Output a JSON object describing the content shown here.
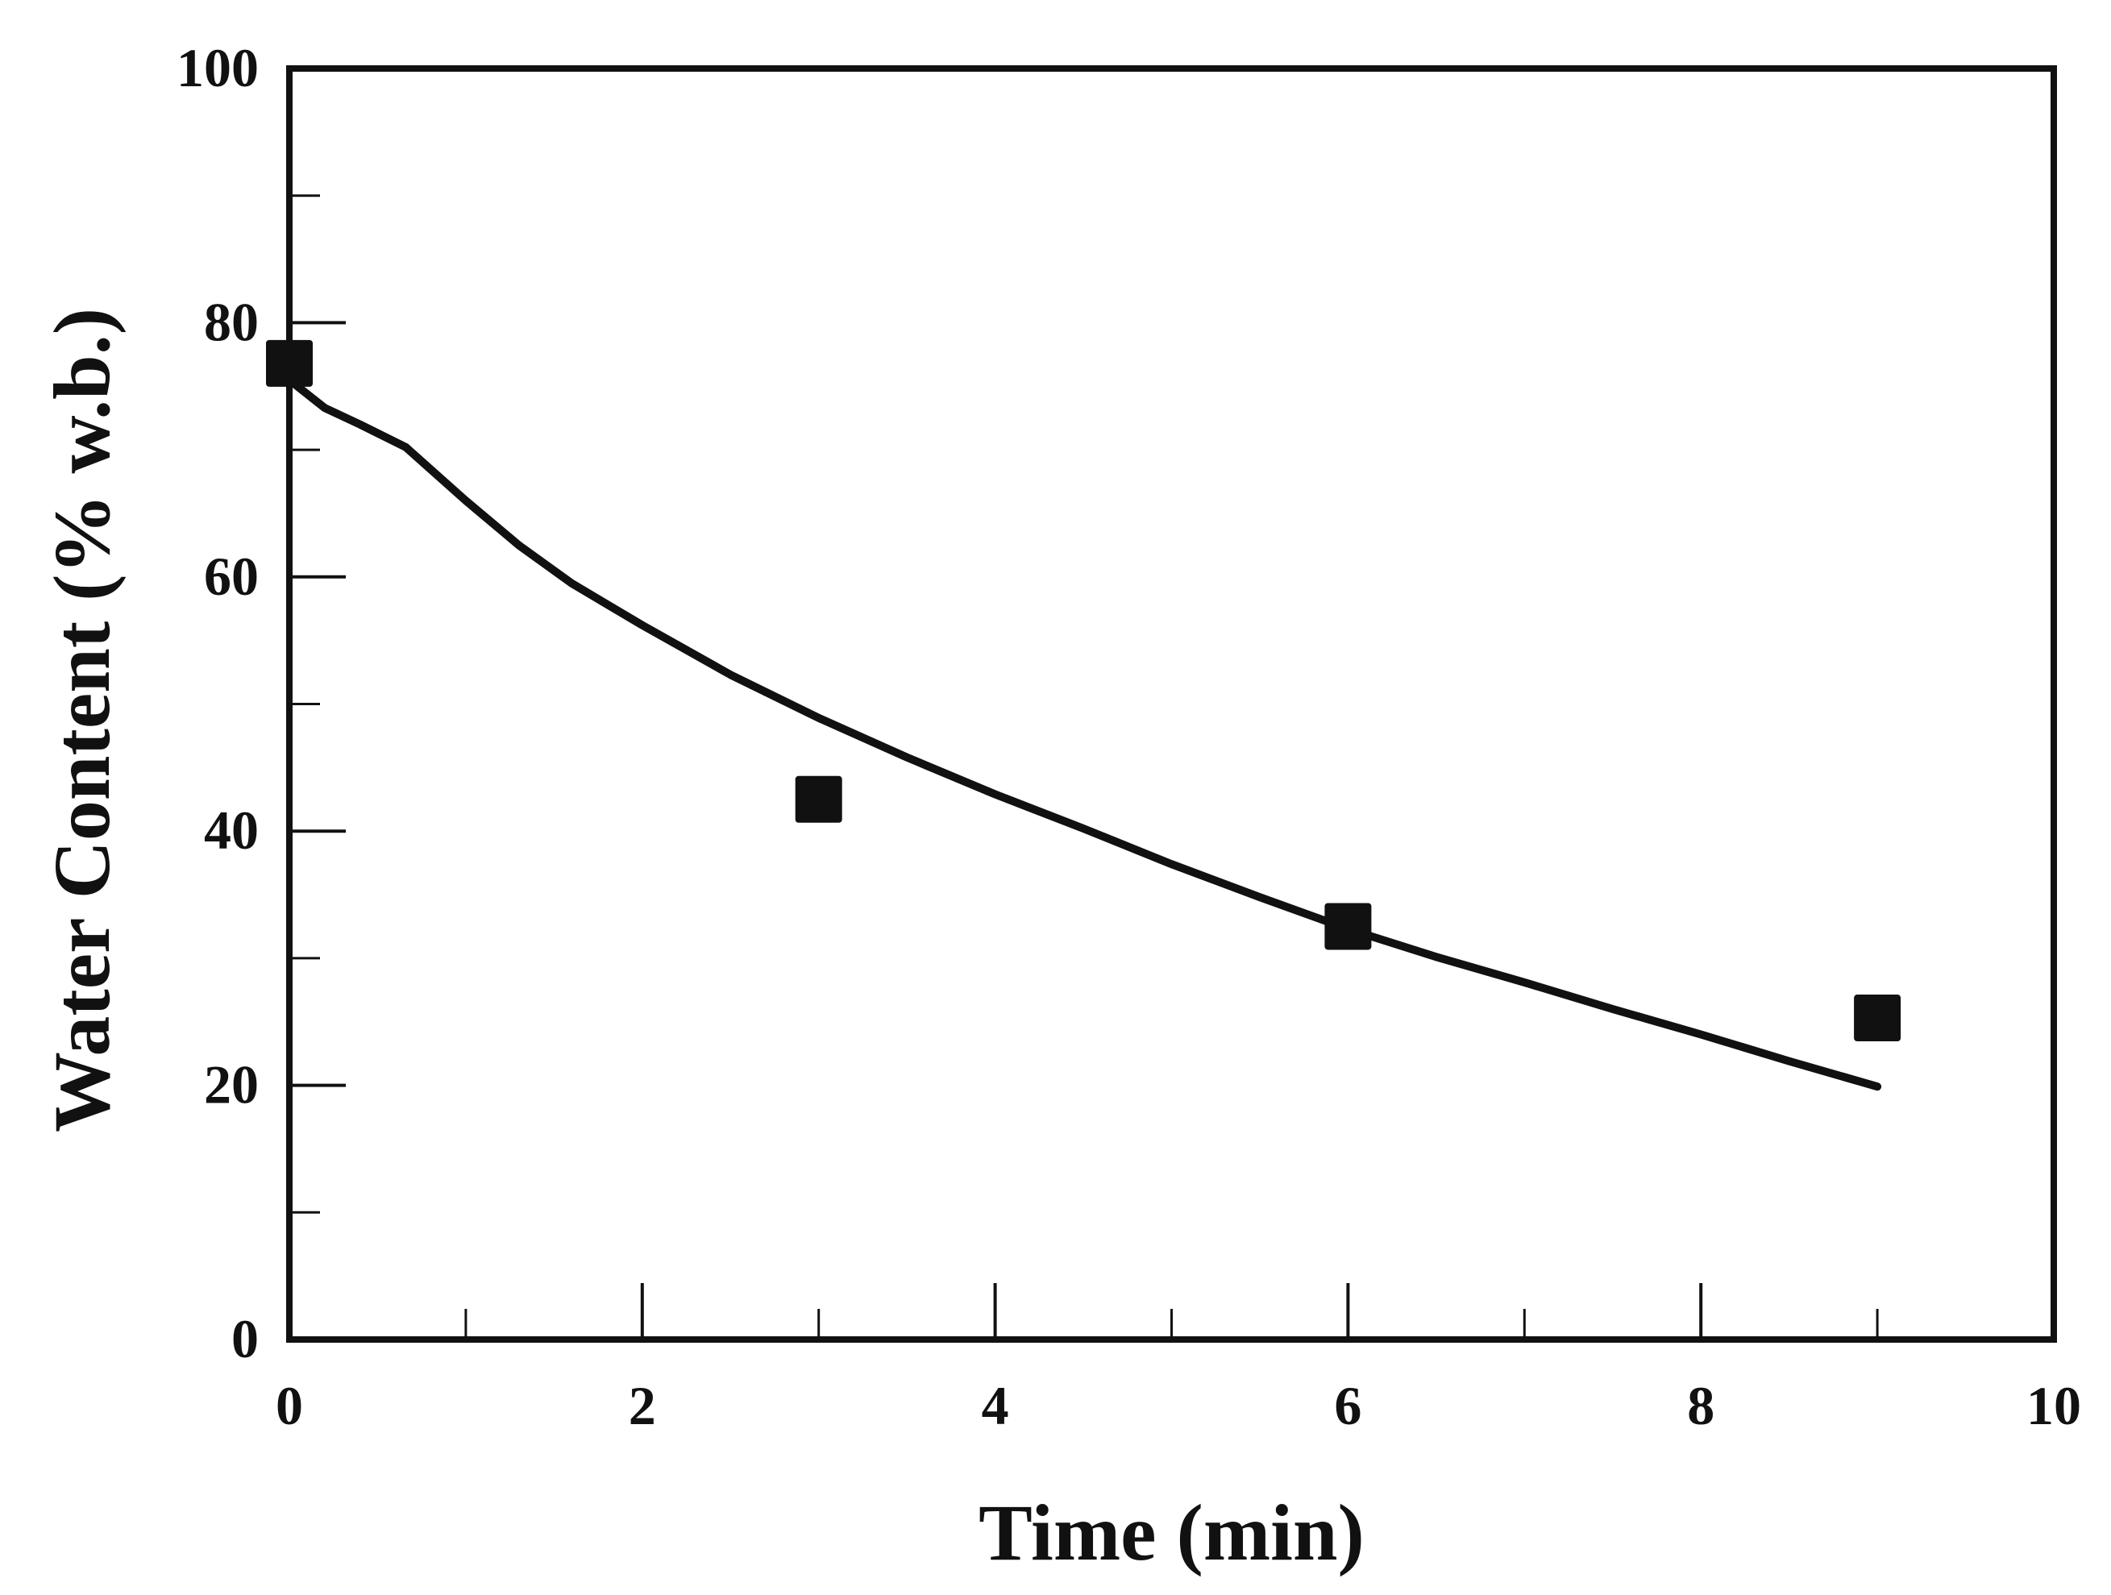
{
  "chart_data": {
    "type": "scatter",
    "title": "",
    "xlabel": "Time (min)",
    "ylabel": "Water Content (% w.b.)",
    "xlim": [
      0,
      10
    ],
    "ylim": [
      0,
      100
    ],
    "x_ticks": [
      0,
      2,
      4,
      6,
      8,
      10
    ],
    "x_tick_labels": [
      "0",
      "2",
      "4",
      "6",
      "8",
      "10"
    ],
    "x_minor_ticks": [
      1,
      3,
      5,
      7,
      9
    ],
    "y_ticks": [
      0,
      20,
      40,
      60,
      80,
      100
    ],
    "y_tick_labels": [
      "0",
      "20",
      "40",
      "60",
      "80",
      "100"
    ],
    "y_minor_ticks": [
      10,
      30,
      50,
      70,
      90
    ],
    "grid": false,
    "legend": "none",
    "series": [
      {
        "kind": "scatter",
        "marker": "square",
        "color": "#111111",
        "x": [
          0,
          3,
          6,
          9
        ],
        "y": [
          76.8,
          42.5,
          32.5,
          25.3
        ]
      },
      {
        "kind": "line",
        "color": "#111111",
        "x": [
          0,
          0.2,
          0.4,
          0.66,
          1.0,
          1.3,
          1.6,
          2.0,
          2.5,
          3.0,
          3.5,
          4.0,
          4.5,
          5.0,
          5.5,
          6.0,
          6.5,
          7.0,
          7.5,
          8.0,
          8.5,
          9.0
        ],
        "y": [
          75.5,
          73.3,
          72.0,
          70.2,
          66.0,
          62.5,
          59.5,
          56.2,
          52.3,
          48.9,
          45.8,
          42.9,
          40.2,
          37.4,
          34.8,
          32.3,
          30.1,
          28.1,
          26.0,
          24.0,
          21.9,
          19.9
        ]
      }
    ]
  }
}
